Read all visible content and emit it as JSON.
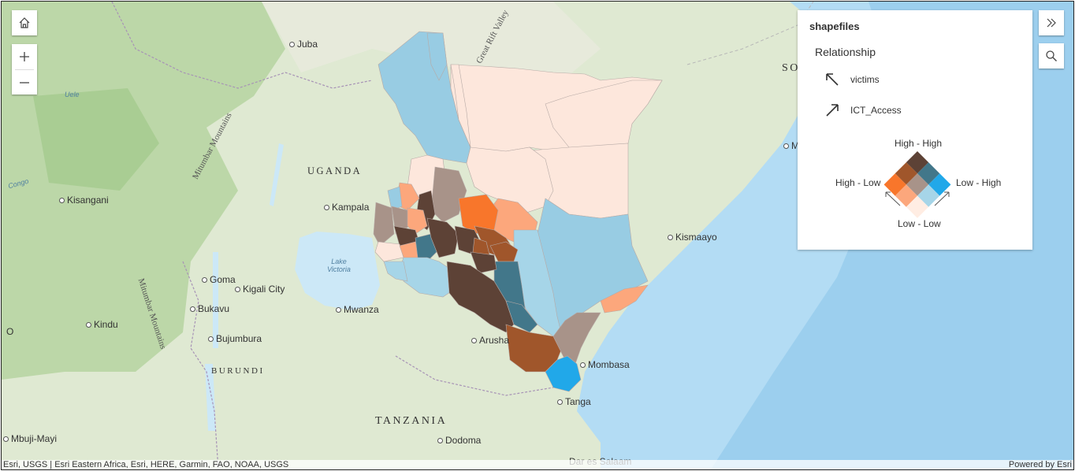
{
  "map": {
    "places": [
      {
        "name": "Juba"
      },
      {
        "name": "Kisangani"
      },
      {
        "name": "Kampala"
      },
      {
        "name": "Goma"
      },
      {
        "name": "Kigali City"
      },
      {
        "name": "Bukavu"
      },
      {
        "name": "Kindu"
      },
      {
        "name": "Bujumbura"
      },
      {
        "name": "Mwanza"
      },
      {
        "name": "Arusha"
      },
      {
        "name": "Mombasa"
      },
      {
        "name": "Tanga"
      },
      {
        "name": "Dodoma"
      },
      {
        "name": "Mbuji-Mayi"
      },
      {
        "name": "Kismaayo"
      },
      {
        "name": "Dar es Salaam"
      },
      {
        "name": "Mo"
      }
    ],
    "countries": [
      "UGANDA",
      "BURUNDI",
      "TANZANIA",
      "SO"
    ],
    "regions": [
      "Mitumbar Mountains",
      "Mitumbar Mountains",
      "Great Rift Valley"
    ],
    "waters": [
      "Uele",
      "Congo",
      "Lake Victoria"
    ],
    "edge_letters": [
      "O"
    ]
  },
  "controls": {
    "home_icon": "home-icon",
    "zoom_in_icon": "plus-icon",
    "zoom_out_icon": "minus-icon",
    "expand_icon": "double-chevron-right-icon",
    "search_icon": "search-icon"
  },
  "legend": {
    "layer_title": "shapefiles",
    "field_title": "Relationship",
    "var1": {
      "label": "victims",
      "icon": "arrow-up-left-icon"
    },
    "var2": {
      "label": "ICT_Access",
      "icon": "arrow-up-right-icon"
    },
    "labels": {
      "top": "High - High",
      "left": "High - Low",
      "right": "Low - High",
      "bottom": "Low - Low"
    },
    "colors": [
      "#ffede3",
      "#fca77c",
      "#f8762b",
      "#a6d5e8",
      "#a89389",
      "#a0562b",
      "#21a8e9",
      "#42778a",
      "#5d4236"
    ]
  },
  "attribution": {
    "left": "Esri, USGS | Esri Eastern Africa, Esri, HERE, Garmin, FAO, NOAA, USGS",
    "right": "Powered by Esri"
  }
}
